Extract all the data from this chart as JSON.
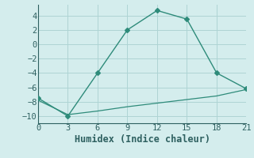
{
  "line1_x": [
    0,
    3,
    6,
    9,
    12,
    15,
    18,
    21
  ],
  "line1_y": [
    -7.5,
    -10,
    -4,
    2,
    4.7,
    3.5,
    -4,
    -6.2
  ],
  "line2_x": [
    0,
    3,
    6,
    9,
    12,
    15,
    18,
    21
  ],
  "line2_y": [
    -7.8,
    -9.8,
    -9.3,
    -8.7,
    -8.2,
    -7.7,
    -7.2,
    -6.3
  ],
  "color": "#2e8b7a",
  "bg_color": "#d4eded",
  "grid_color": "#aed4d4",
  "spine_color": "#2e6060",
  "tick_color": "#2e6060",
  "xlabel": "Humidex (Indice chaleur)",
  "xlim": [
    0,
    21
  ],
  "ylim": [
    -11,
    5.5
  ],
  "xticks": [
    0,
    3,
    6,
    9,
    12,
    15,
    18,
    21
  ],
  "yticks": [
    -10,
    -8,
    -6,
    -4,
    -2,
    0,
    2,
    4
  ],
  "font_size": 8.5,
  "xlabel_size": 8.5
}
